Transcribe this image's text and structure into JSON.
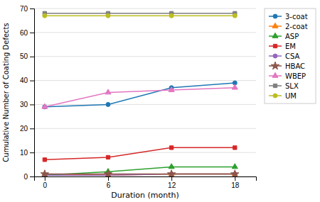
{
  "chart_data": {
    "type": "line",
    "xlabel": "Duration (month)",
    "ylabel": "Cumulative Number of Coating Defects",
    "x": [
      0,
      6,
      12,
      18
    ],
    "series": [
      {
        "name": "3-coat",
        "values": [
          29,
          30,
          37,
          39
        ],
        "marker": "circle",
        "line_style": "solid"
      },
      {
        "name": "2-coat",
        "values": [
          1,
          0.5,
          1,
          1
        ],
        "marker": "triangle",
        "line_style": "solid"
      },
      {
        "name": "ASP",
        "values": [
          0.5,
          2,
          4,
          4
        ],
        "marker": "triangle",
        "line_style": "solid"
      },
      {
        "name": "EM",
        "values": [
          7,
          8,
          12,
          12
        ],
        "marker": "square",
        "line_style": "solid"
      },
      {
        "name": "CSA",
        "values": [
          0.5,
          0.5,
          1,
          1
        ],
        "marker": "circle",
        "line_style": "solid"
      },
      {
        "name": "HBAC",
        "values": [
          1,
          1,
          1,
          1
        ],
        "marker": "star",
        "line_style": "solid"
      },
      {
        "name": "WBEP",
        "values": [
          29,
          35,
          36,
          37
        ],
        "marker": "triangle",
        "line_style": "solid"
      },
      {
        "name": "SLX",
        "values": [
          68,
          68,
          68,
          68
        ],
        "marker": "square",
        "line_style": "solid"
      },
      {
        "name": "UM",
        "values": [
          67,
          67,
          67,
          67
        ],
        "marker": "circle",
        "line_style": "solid"
      }
    ],
    "xlim": [
      -1,
      20
    ],
    "ylim": [
      0,
      70
    ],
    "xticks": [
      0,
      6,
      12,
      18
    ],
    "yticks": [
      0,
      10,
      20,
      30,
      40,
      50,
      60,
      70
    ],
    "grid": "y",
    "legend": "right"
  }
}
